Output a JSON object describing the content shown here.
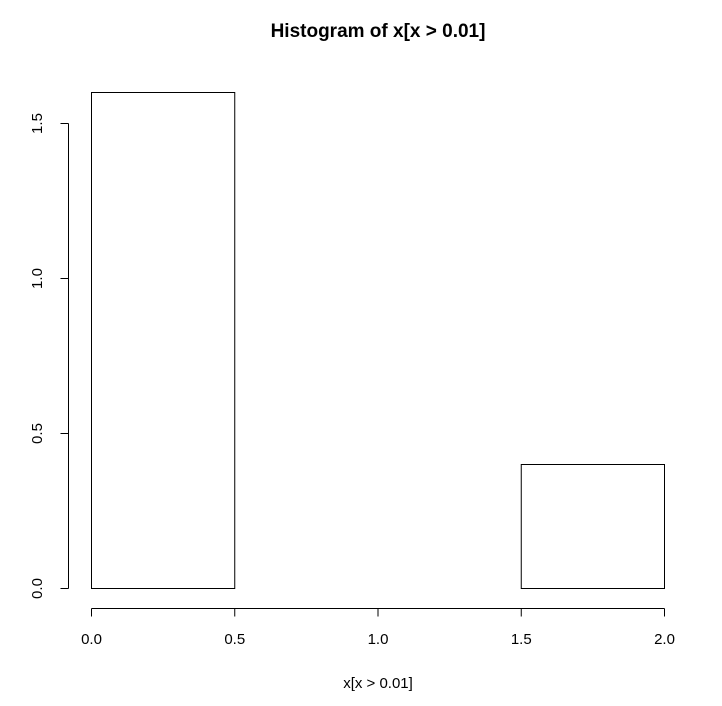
{
  "chart_data": {
    "type": "bar",
    "title": "Histogram of x[x > 0.01]",
    "xlabel": "x[x > 0.01]",
    "ylabel": "",
    "bins": [
      {
        "start": 0.0,
        "end": 0.5,
        "value": 1.6
      },
      {
        "start": 0.5,
        "end": 1.0,
        "value": 0.0
      },
      {
        "start": 1.0,
        "end": 1.5,
        "value": 0.0
      },
      {
        "start": 1.5,
        "end": 2.0,
        "value": 0.4
      }
    ],
    "x_ticks": [
      {
        "value": 0.0,
        "label": "0.0"
      },
      {
        "value": 0.5,
        "label": "0.5"
      },
      {
        "value": 1.0,
        "label": "1.0"
      },
      {
        "value": 1.5,
        "label": "1.5"
      },
      {
        "value": 2.0,
        "label": "2.0"
      }
    ],
    "y_ticks": [
      {
        "value": 0.0,
        "label": "0.0"
      },
      {
        "value": 0.5,
        "label": "0.5"
      },
      {
        "value": 1.0,
        "label": "1.0"
      },
      {
        "value": 1.5,
        "label": "1.5"
      }
    ],
    "xlim": [
      0.0,
      2.0
    ],
    "ylim": [
      0.0,
      1.6
    ],
    "grid": false,
    "bar_fill": "#ffffff",
    "bar_stroke": "#000000"
  }
}
